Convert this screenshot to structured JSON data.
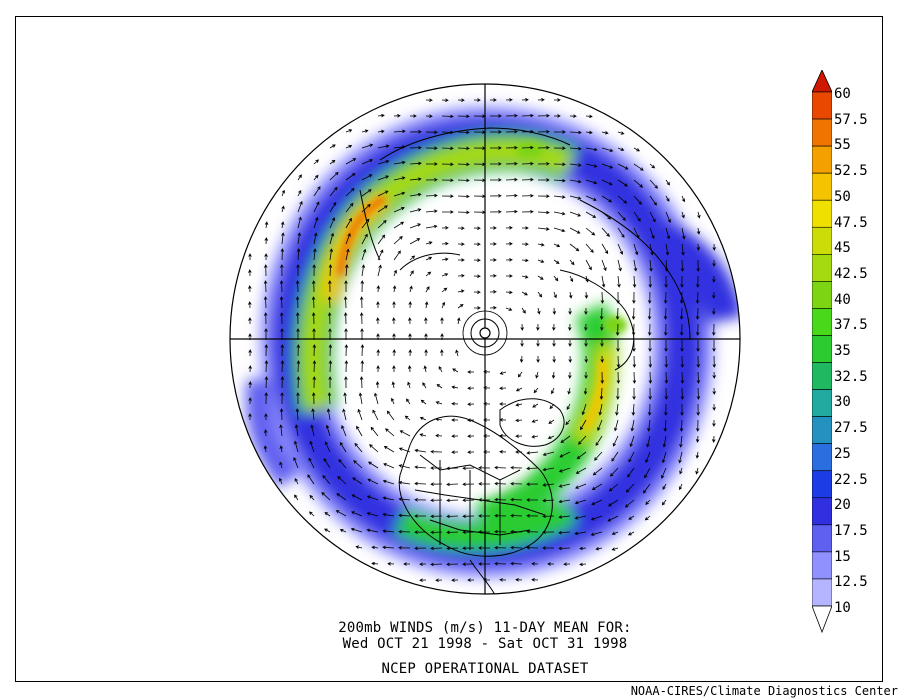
{
  "title": {
    "line1": "200mb WINDS (m/s)   11-DAY MEAN FOR:",
    "line2": "Wed OCT 21 1998 - Sat OCT 31 1998",
    "line3": "NCEP OPERATIONAL DATASET"
  },
  "credit": "NOAA-CIRES/Climate Diagnostics Center",
  "colorbar": {
    "levels": [
      "10",
      "12.5",
      "15",
      "17.5",
      "20",
      "22.5",
      "25",
      "27.5",
      "30",
      "32.5",
      "35",
      "37.5",
      "40",
      "42.5",
      "45",
      "47.5",
      "50",
      "52.5",
      "55",
      "57.5",
      "60"
    ],
    "colors": [
      "#d8d8ff",
      "#b4b4ff",
      "#9090ff",
      "#6060f0",
      "#3030e0",
      "#1c3ce6",
      "#2a6ee0",
      "#2492c0",
      "#20aaa0",
      "#20b860",
      "#2ccc30",
      "#4ad81a",
      "#7cd412",
      "#a6da10",
      "#ccdc08",
      "#f0e000",
      "#f4c400",
      "#f4a000",
      "#f07400",
      "#e84800",
      "#d01800"
    ]
  },
  "map": {
    "projection": "north polar stereographic",
    "field": "200mb wind speed (m/s) with wind vectors"
  }
}
